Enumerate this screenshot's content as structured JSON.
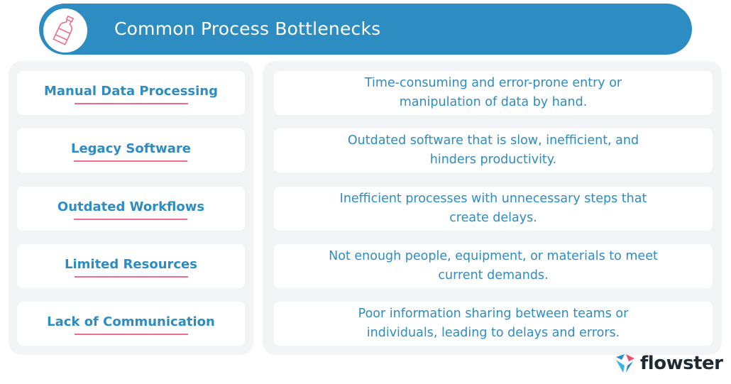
{
  "header": {
    "title": "Common Process Bottlenecks",
    "icon": "bottle-icon"
  },
  "rows": [
    {
      "term": "Manual Data Processing",
      "description": "Time-consuming and error-prone entry or manipulation of data by hand."
    },
    {
      "term": "Legacy Software",
      "description": "Outdated software that is slow, inefficient, and hinders productivity."
    },
    {
      "term": "Outdated Workflows",
      "description": "Inefficient processes with unnecessary steps that create delays."
    },
    {
      "term": "Limited Resources",
      "description": "Not enough people, equipment, or materials to meet current demands."
    },
    {
      "term": "Lack of Communication",
      "description": "Poor information sharing between teams or individuals, leading to delays and errors."
    }
  ],
  "logo": {
    "text": "flowster"
  },
  "colors": {
    "primary": "#2d8cc2",
    "accent": "#ec6f8a",
    "panel": "#f3f4f5"
  }
}
